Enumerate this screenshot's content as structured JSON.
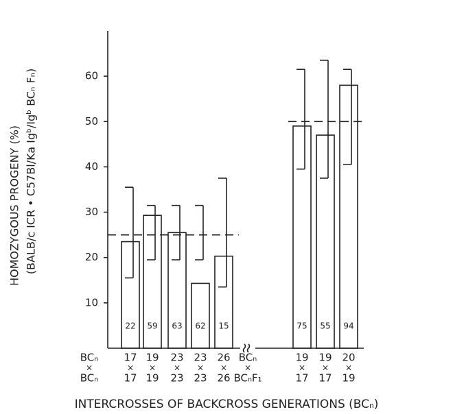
{
  "chart_data": {
    "type": "bar",
    "y_label": [
      "HOMOZYGOUS PROGENY (%)",
      "(BALB/c ICR • C57Bl/Ka Igᵇ/Igᵇ BCₙ Fₙ)"
    ],
    "x_label": "INTERCROSSES OF BACKCROSS GENERATIONS (BCₙ)",
    "row_labels": [
      "BCₙ",
      "×",
      "BCₙ"
    ],
    "categories": [
      [
        "17",
        "×",
        "17"
      ],
      [
        "19",
        "×",
        "19"
      ],
      [
        "23",
        "×",
        "23"
      ],
      [
        "23",
        "×",
        "23"
      ],
      [
        "26",
        "×",
        "26"
      ],
      [
        "BCₙ",
        "×",
        "BCₙF₁"
      ],
      [
        "19",
        "×",
        "17"
      ],
      [
        "19",
        "×",
        "17"
      ],
      [
        "20",
        "×",
        "19"
      ]
    ],
    "values": [
      23.5,
      29.3,
      25.5,
      14.3,
      20.3,
      null,
      49,
      47,
      58
    ],
    "ci_upper": [
      35.5,
      31.5,
      31.5,
      31.5,
      37.5,
      null,
      61.5,
      63.5,
      61.5
    ],
    "ci_lower": [
      15.5,
      19.5,
      19.5,
      19.5,
      13.5,
      null,
      39.5,
      37.5,
      40.5
    ],
    "n": [
      22,
      59,
      63,
      62,
      15,
      null,
      75,
      55,
      94
    ],
    "reference_lines": [
      25,
      50
    ],
    "color": "#222222",
    "ylim": [
      0,
      70
    ],
    "yticks": [
      10,
      20,
      30,
      40,
      50,
      60
    ]
  }
}
